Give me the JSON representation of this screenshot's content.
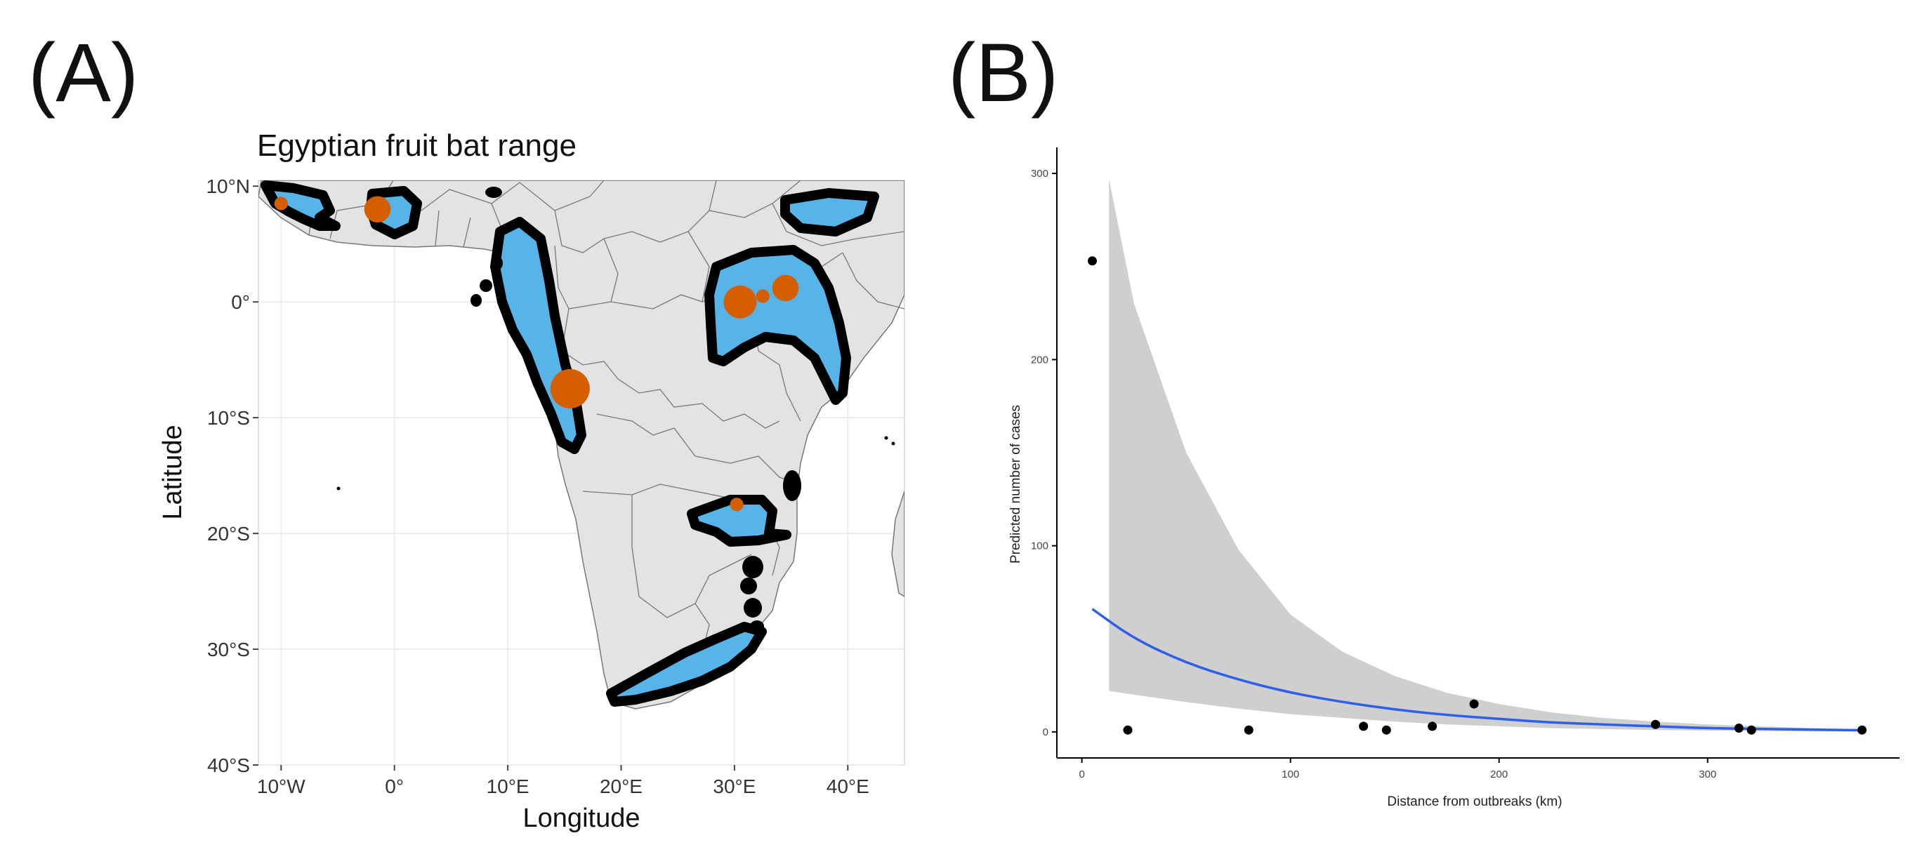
{
  "panel_labels": {
    "a": "(A)",
    "b": "(B)"
  },
  "colors": {
    "land": "#e3e3e3",
    "border": "#777777",
    "range_fill": "#56b4e9",
    "range_outline": "#000000",
    "outbreak": "#d55e00",
    "fit_line": "#2f5fe8",
    "ci_band": "#cfcfcf",
    "points": "#000000"
  },
  "map": {
    "title": "Egyptian fruit bat range",
    "xlabel": "Longitude",
    "ylabel": "Latitude",
    "lon_range": [
      -12,
      45
    ],
    "lat_range": [
      -40,
      10.5
    ],
    "x_ticks": [
      {
        "value": -10,
        "label": "10°W"
      },
      {
        "value": 0,
        "label": "0°"
      },
      {
        "value": 10,
        "label": "10°E"
      },
      {
        "value": 20,
        "label": "20°E"
      },
      {
        "value": 30,
        "label": "30°E"
      },
      {
        "value": 40,
        "label": "40°E"
      }
    ],
    "y_ticks": [
      {
        "value": 10,
        "label": "10°N"
      },
      {
        "value": 0,
        "label": "0°"
      },
      {
        "value": -10,
        "label": "10°S"
      },
      {
        "value": -20,
        "label": "20°S"
      },
      {
        "value": -30,
        "label": "30°S"
      },
      {
        "value": -40,
        "label": "40°S"
      }
    ],
    "outbreaks": [
      {
        "lon": -1.5,
        "lat": 8.0,
        "size": 3
      },
      {
        "lon": -10.0,
        "lat": 8.5,
        "size": 1
      },
      {
        "lon": 30.5,
        "lat": 0.0,
        "size": 4
      },
      {
        "lon": 34.5,
        "lat": 1.2,
        "size": 3
      },
      {
        "lon": 32.5,
        "lat": 0.5,
        "size": 1
      },
      {
        "lon": 15.5,
        "lat": -7.5,
        "size": 5
      },
      {
        "lon": 30.2,
        "lat": -17.5,
        "size": 1
      }
    ]
  },
  "chart_data": {
    "type": "scatter",
    "title": "",
    "xlabel": "Distance from outbreaks (km)",
    "ylabel": "Predicted number of cases",
    "xlim": [
      -12,
      392
    ],
    "ylim": [
      -14,
      314
    ],
    "x_ticks": [
      0,
      100,
      200,
      300
    ],
    "y_ticks": [
      0,
      100,
      200,
      300
    ],
    "points": [
      {
        "x": 5,
        "y": 253
      },
      {
        "x": 22,
        "y": 1
      },
      {
        "x": 80,
        "y": 1
      },
      {
        "x": 135,
        "y": 3
      },
      {
        "x": 146,
        "y": 1
      },
      {
        "x": 168,
        "y": 3
      },
      {
        "x": 188,
        "y": 15
      },
      {
        "x": 275,
        "y": 4
      },
      {
        "x": 315,
        "y": 2
      },
      {
        "x": 321,
        "y": 1
      },
      {
        "x": 374,
        "y": 1
      }
    ],
    "fit": {
      "x": [
        5,
        25,
        50,
        75,
        100,
        125,
        150,
        175,
        200,
        225,
        250,
        275,
        300,
        325,
        350,
        374
      ],
      "y": [
        66,
        50,
        37,
        28,
        21,
        16,
        12,
        9,
        7,
        5,
        4,
        3,
        2,
        1.6,
        1.2,
        0.9
      ]
    },
    "ci": {
      "x": [
        13,
        25,
        50,
        75,
        100,
        125,
        150,
        175,
        200,
        225,
        250,
        275,
        300,
        325,
        350,
        374
      ],
      "upper": [
        297,
        230,
        150,
        98,
        63,
        43,
        30,
        21,
        15,
        10.5,
        7.5,
        5.5,
        4,
        3,
        2,
        1.5
      ],
      "lower": [
        22,
        20,
        16,
        12.5,
        9.5,
        7.5,
        5.5,
        4,
        3,
        2,
        1.5,
        1,
        0.7,
        0.5,
        0.3,
        0.2
      ]
    }
  }
}
